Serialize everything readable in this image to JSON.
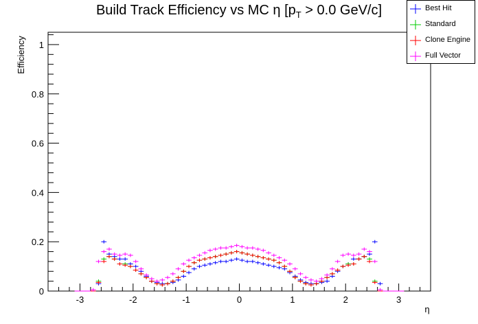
{
  "title": {
    "prefix": "Build Track Efficiency vs MC η [p",
    "sub": "T",
    "suffix": " > 0.0 GeV/c]"
  },
  "chart_data": {
    "type": "scatter",
    "xlabel": "η",
    "ylabel": "Efficiency",
    "xlim": [
      -3.6,
      3.6
    ],
    "ylim": [
      0,
      1.05
    ],
    "xticks": [
      -3,
      -2,
      -1,
      0,
      1,
      2,
      3
    ],
    "yticks": [
      0,
      0.2,
      0.4,
      0.6,
      0.8,
      1
    ],
    "bin_width": 0.1,
    "x": [
      -3.05,
      -2.95,
      -2.85,
      -2.75,
      -2.65,
      -2.55,
      -2.45,
      -2.35,
      -2.25,
      -2.15,
      -2.05,
      -1.95,
      -1.85,
      -1.75,
      -1.65,
      -1.55,
      -1.45,
      -1.35,
      -1.25,
      -1.15,
      -1.05,
      -0.95,
      -0.85,
      -0.75,
      -0.65,
      -0.55,
      -0.45,
      -0.35,
      -0.25,
      -0.15,
      -0.05,
      0.05,
      0.15,
      0.25,
      0.35,
      0.45,
      0.55,
      0.65,
      0.75,
      0.85,
      0.95,
      1.05,
      1.15,
      1.25,
      1.35,
      1.45,
      1.55,
      1.65,
      1.75,
      1.85,
      1.95,
      2.05,
      2.15,
      2.25,
      2.35,
      2.45,
      2.55,
      2.65,
      2.75,
      2.85,
      2.95,
      3.05
    ],
    "series": [
      {
        "name": "Best Hit",
        "color": "#0000ff",
        "values": [
          0,
          0,
          0,
          0,
          0.03,
          0.2,
          0.15,
          0.14,
          0.13,
          0.13,
          0.11,
          0.1,
          0.08,
          0.06,
          0.04,
          0.035,
          0.03,
          0.03,
          0.035,
          0.045,
          0.06,
          0.075,
          0.09,
          0.1,
          0.105,
          0.11,
          0.115,
          0.12,
          0.12,
          0.125,
          0.13,
          0.125,
          0.12,
          0.12,
          0.115,
          0.11,
          0.105,
          0.1,
          0.095,
          0.09,
          0.075,
          0.06,
          0.045,
          0.035,
          0.03,
          0.03,
          0.035,
          0.04,
          0.06,
          0.08,
          0.1,
          0.11,
          0.13,
          0.13,
          0.14,
          0.15,
          0.2,
          0.03,
          0,
          0,
          0,
          0
        ]
      },
      {
        "name": "Standard",
        "color": "#00cc00",
        "values": [
          0,
          0,
          0,
          0,
          0.04,
          0.13,
          0.14,
          0.13,
          0.11,
          0.11,
          0.1,
          0.085,
          0.07,
          0.055,
          0.04,
          0.03,
          0.025,
          0.03,
          0.04,
          0.055,
          0.08,
          0.1,
          0.115,
          0.125,
          0.13,
          0.135,
          0.14,
          0.145,
          0.15,
          0.155,
          0.16,
          0.155,
          0.15,
          0.145,
          0.14,
          0.135,
          0.13,
          0.125,
          0.115,
          0.1,
          0.08,
          0.055,
          0.04,
          0.03,
          0.025,
          0.03,
          0.04,
          0.055,
          0.07,
          0.085,
          0.1,
          0.11,
          0.11,
          0.13,
          0.14,
          0.13,
          0.04,
          0,
          0,
          0,
          0,
          0
        ]
      },
      {
        "name": "Clone Engine",
        "color": "#ff0000",
        "values": [
          0,
          0,
          0,
          0,
          0.035,
          0.12,
          0.14,
          0.13,
          0.11,
          0.105,
          0.1,
          0.085,
          0.07,
          0.055,
          0.04,
          0.03,
          0.025,
          0.03,
          0.04,
          0.055,
          0.08,
          0.1,
          0.115,
          0.125,
          0.13,
          0.135,
          0.14,
          0.145,
          0.15,
          0.155,
          0.16,
          0.155,
          0.15,
          0.145,
          0.14,
          0.135,
          0.13,
          0.125,
          0.115,
          0.1,
          0.08,
          0.055,
          0.04,
          0.03,
          0.025,
          0.03,
          0.04,
          0.055,
          0.07,
          0.085,
          0.1,
          0.105,
          0.11,
          0.13,
          0.14,
          0.12,
          0.035,
          0,
          0,
          0,
          0,
          0
        ]
      },
      {
        "name": "Full Vector",
        "color": "#ff00ff",
        "values": [
          0,
          0,
          0,
          0.005,
          0.12,
          0.16,
          0.17,
          0.15,
          0.145,
          0.15,
          0.145,
          0.12,
          0.09,
          0.065,
          0.05,
          0.04,
          0.045,
          0.055,
          0.07,
          0.09,
          0.11,
          0.125,
          0.135,
          0.145,
          0.155,
          0.165,
          0.17,
          0.175,
          0.175,
          0.18,
          0.185,
          0.18,
          0.175,
          0.175,
          0.17,
          0.165,
          0.155,
          0.145,
          0.135,
          0.125,
          0.11,
          0.09,
          0.07,
          0.055,
          0.045,
          0.04,
          0.05,
          0.065,
          0.09,
          0.12,
          0.145,
          0.15,
          0.145,
          0.15,
          0.17,
          0.16,
          0.12,
          0.005,
          0,
          0,
          0,
          0
        ]
      }
    ]
  }
}
